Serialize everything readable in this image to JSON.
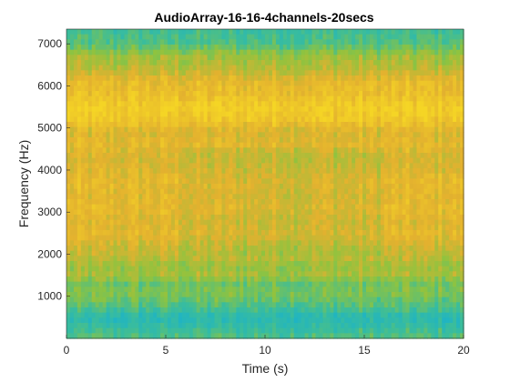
{
  "chart_data": {
    "type": "heatmap",
    "title": "AudioArray-16-16-4channels-20secs",
    "xlabel": "Time (s)",
    "ylabel": "Frequency (Hz)",
    "xlim": [
      0,
      20
    ],
    "ylim": [
      0,
      7350
    ],
    "x_ticks": [
      "0",
      "5",
      "10",
      "15",
      "20"
    ],
    "y_ticks": [
      "1000",
      "2000",
      "3000",
      "4000",
      "5000",
      "6000",
      "7000"
    ],
    "grid": false,
    "colormap": "parula",
    "colors": {
      "low": "#1cb3c8",
      "mid_low": "#3bbd9b",
      "mid": "#8fc33f",
      "mid_high": "#e3b12f",
      "high": "#f5d525"
    },
    "band_levels_hz": [
      {
        "hz": 100,
        "level": 0.3
      },
      {
        "hz": 300,
        "level": 0.18
      },
      {
        "hz": 500,
        "level": 0.12
      },
      {
        "hz": 700,
        "level": 0.28
      },
      {
        "hz": 900,
        "level": 0.38
      },
      {
        "hz": 1100,
        "level": 0.45
      },
      {
        "hz": 1300,
        "level": 0.4
      },
      {
        "hz": 1500,
        "level": 0.58
      },
      {
        "hz": 1700,
        "level": 0.52
      },
      {
        "hz": 1900,
        "level": 0.62
      },
      {
        "hz": 2100,
        "level": 0.66
      },
      {
        "hz": 2300,
        "level": 0.72
      },
      {
        "hz": 2500,
        "level": 0.78
      },
      {
        "hz": 2800,
        "level": 0.74
      },
      {
        "hz": 3100,
        "level": 0.8
      },
      {
        "hz": 3400,
        "level": 0.76
      },
      {
        "hz": 3700,
        "level": 0.79
      },
      {
        "hz": 4000,
        "level": 0.74
      },
      {
        "hz": 4300,
        "level": 0.7
      },
      {
        "hz": 4600,
        "level": 0.77
      },
      {
        "hz": 4900,
        "level": 0.72
      },
      {
        "hz": 5200,
        "level": 0.9
      },
      {
        "hz": 5500,
        "level": 0.95
      },
      {
        "hz": 5800,
        "level": 0.84
      },
      {
        "hz": 6100,
        "level": 0.8
      },
      {
        "hz": 6400,
        "level": 0.62
      },
      {
        "hz": 6700,
        "level": 0.55
      },
      {
        "hz": 7000,
        "level": 0.32
      },
      {
        "hz": 7300,
        "level": 0.25
      }
    ]
  }
}
